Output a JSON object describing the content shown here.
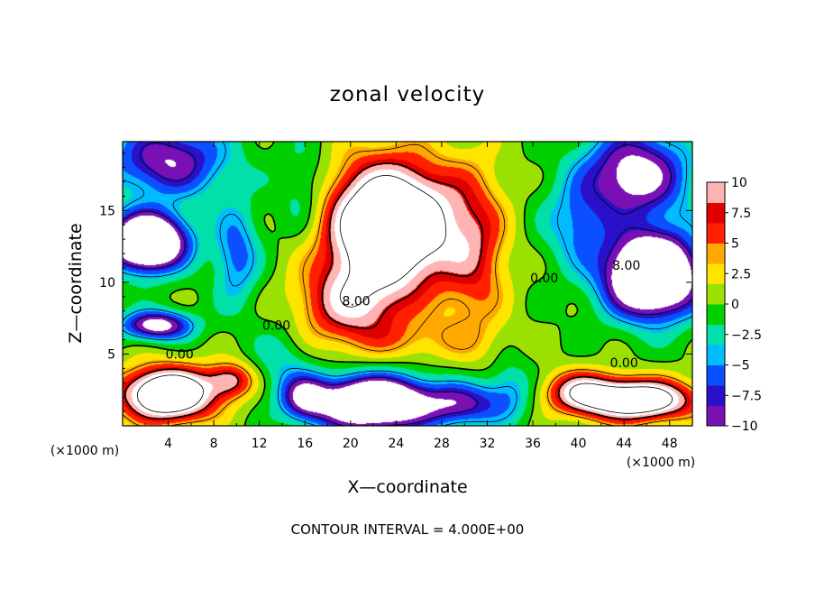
{
  "chart_data": {
    "type": "heatmap",
    "title": "zonal velocity",
    "xlabel": "X—coordinate",
    "ylabel": "Z—coordinate",
    "x_unit_label": "(×1000 m)",
    "y_unit_label": "(×1000 m)",
    "xlim": [
      0,
      50
    ],
    "ylim": [
      0,
      19.8
    ],
    "x_ticks": [
      4,
      8,
      12,
      16,
      20,
      24,
      28,
      32,
      36,
      40,
      44,
      48
    ],
    "x_tick_labels": [
      "4",
      "8",
      "12",
      "16",
      "20",
      "24",
      "28",
      "32",
      "36",
      "40",
      "44",
      "48"
    ],
    "y_ticks": [
      5,
      10,
      15
    ],
    "y_tick_labels": [
      "5",
      "10",
      "15"
    ],
    "colorbar": {
      "range": [
        -10,
        10
      ],
      "ticks": [
        10,
        7.5,
        5,
        2.5,
        0,
        -2.5,
        -5,
        -7.5,
        -10
      ],
      "tick_labels": [
        "10",
        "7.5",
        "5",
        "2.5",
        "0",
        "−2.5",
        "−5",
        "−7.5",
        "−10"
      ],
      "colors": [
        "#7a10b4",
        "#2a10c8",
        "#0a50ff",
        "#00bcff",
        "#00e0a8",
        "#00d000",
        "#9ae000",
        "#ffe400",
        "#ffa800",
        "#ff2000",
        "#e00000",
        "#ffb4b4"
      ]
    },
    "contour_interval_note": "CONTOUR INTERVAL = 4.000E+00",
    "contour_labels": [
      {
        "text": "8.00",
        "x": 20.5,
        "z": 8.7
      },
      {
        "text": "8.00",
        "x": 44.2,
        "z": 11.2
      },
      {
        "text": "0.00",
        "x": 37.0,
        "z": 10.3
      },
      {
        "text": "0.00",
        "x": 13.5,
        "z": 7.0
      },
      {
        "text": "0.00",
        "x": 5.0,
        "z": 5.0
      },
      {
        "text": "0.00",
        "x": 44.0,
        "z": 4.4
      }
    ],
    "field_sources": [
      {
        "x": 23.5,
        "z": 14.0,
        "sx": 5.5,
        "sz": 4.2,
        "a": 22
      },
      {
        "x": 20.0,
        "z": 8.5,
        "sx": 4.5,
        "sz": 2.8,
        "a": 9
      },
      {
        "x": 31.0,
        "z": 12.0,
        "sx": 2.8,
        "sz": 6.0,
        "a": 6
      },
      {
        "x": 2.2,
        "z": 12.8,
        "sx": 3.2,
        "sz": 1.9,
        "a": -22
      },
      {
        "x": 4.0,
        "z": 18.5,
        "sx": 5.0,
        "sz": 2.5,
        "a": -10
      },
      {
        "x": 3.0,
        "z": 7.0,
        "sx": 3.0,
        "sz": 1.0,
        "a": -12
      },
      {
        "x": 10.0,
        "z": 12.0,
        "sx": 2.0,
        "sz": 3.5,
        "a": -6
      },
      {
        "x": 46.5,
        "z": 10.5,
        "sx": 4.0,
        "sz": 2.8,
        "a": -22
      },
      {
        "x": 45.0,
        "z": 17.5,
        "sx": 4.5,
        "sz": 3.0,
        "a": -12
      },
      {
        "x": 40.0,
        "z": 14.0,
        "sx": 3.0,
        "sz": 3.0,
        "a": -5
      },
      {
        "x": 16.0,
        "z": 16.0,
        "sx": 2.5,
        "sz": 3.5,
        "a": -4
      },
      {
        "x": 4.0,
        "z": 2.2,
        "sx": 4.0,
        "sz": 1.8,
        "a": 20
      },
      {
        "x": 9.5,
        "z": 3.2,
        "sx": 2.0,
        "sz": 1.2,
        "a": 8
      },
      {
        "x": 45.0,
        "z": 1.8,
        "sx": 5.0,
        "sz": 1.4,
        "a": 18
      },
      {
        "x": 40.0,
        "z": 2.5,
        "sx": 3.0,
        "sz": 1.4,
        "a": 8
      },
      {
        "x": 22.0,
        "z": 1.6,
        "sx": 5.0,
        "sz": 1.8,
        "a": -20
      },
      {
        "x": 30.0,
        "z": 1.5,
        "sx": 3.5,
        "sz": 1.5,
        "a": -8
      },
      {
        "x": 34.0,
        "z": 2.5,
        "sx": 2.0,
        "sz": 2.0,
        "a": -4
      },
      {
        "x": 14.0,
        "z": 4.5,
        "sx": 2.5,
        "sz": 2.5,
        "a": -3
      },
      {
        "x": 16.0,
        "z": 2.0,
        "sx": 2.0,
        "sz": 1.5,
        "a": -8
      },
      {
        "x": 26.0,
        "z": 6.0,
        "sx": 6.0,
        "sz": 1.5,
        "a": 3
      }
    ]
  }
}
